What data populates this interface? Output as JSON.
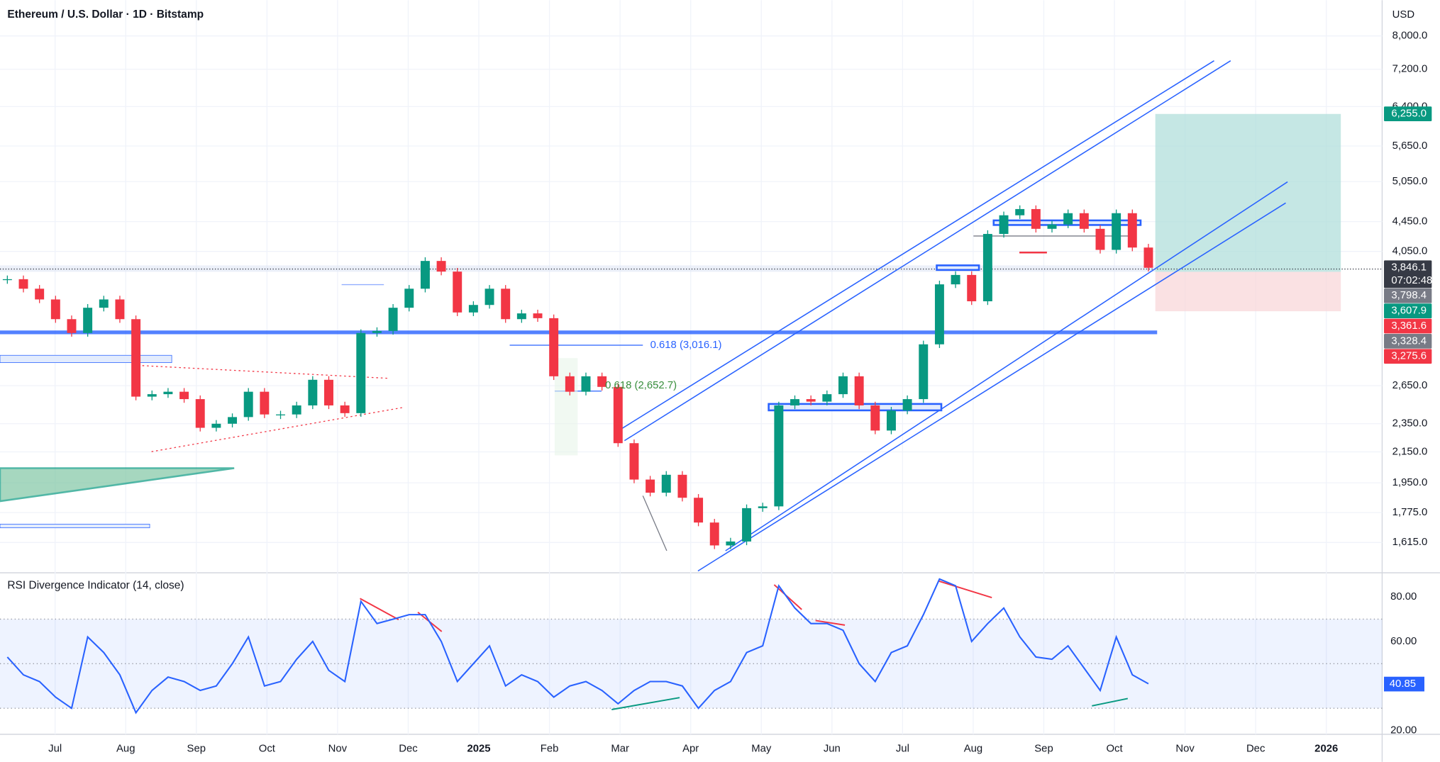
{
  "chart_data": [
    {
      "type": "candlestick",
      "title": "Ethereum / U.S. Dollar · 1D · Bitstamp",
      "currency": "USD",
      "x_labels": [
        "Jul",
        "Aug",
        "Sep",
        "Oct",
        "Nov",
        "Dec",
        "2025",
        "Feb",
        "Mar",
        "Apr",
        "May",
        "Jun",
        "Jul",
        "Aug",
        "Sep",
        "Oct",
        "Nov",
        "Dec",
        "2026"
      ],
      "closes": [
        3710,
        3600,
        3480,
        3270,
        3130,
        3390,
        3480,
        3270,
        2560,
        2580,
        2600,
        2540,
        2320,
        2350,
        2400,
        2600,
        2420,
        2420,
        2490,
        2700,
        2490,
        2430,
        3130,
        3150,
        3390,
        3600,
        3930,
        3800,
        3340,
        3420,
        3600,
        3270,
        3330,
        3280,
        2730,
        2600,
        2730,
        2640,
        2210,
        1970,
        1890,
        2000,
        1860,
        1720,
        1600,
        1620,
        1800,
        1810,
        2490,
        2540,
        2520,
        2580,
        2730,
        2490,
        2300,
        2450,
        2540,
        3020,
        3650,
        3760,
        3460,
        4280,
        4540,
        4630,
        4350,
        4410,
        4570,
        4350,
        4070,
        4570,
        4100,
        3846
      ],
      "up_color": "#089981",
      "down_color": "#f23645",
      "log_scale": true,
      "grid": true,
      "ylim": [
        1476,
        8752
      ],
      "yticks": [
        {
          "value": 8000,
          "label": "8,000.0"
        },
        {
          "value": 7200,
          "label": "7,200.0"
        },
        {
          "value": 6400,
          "label": "6,400.0"
        },
        {
          "value": 5650,
          "label": "5,650.0"
        },
        {
          "value": 5050,
          "label": "5,050.0"
        },
        {
          "value": 4450,
          "label": "4,450.0"
        },
        {
          "value": 4050,
          "label": "4,050.0"
        },
        {
          "value": 2650,
          "label": "2,650.0"
        },
        {
          "value": 2350,
          "label": "2,350.0"
        },
        {
          "value": 2150,
          "label": "2,150.0"
        },
        {
          "value": 1950,
          "label": "1,950.0"
        },
        {
          "value": 1775,
          "label": "1,775.0"
        },
        {
          "value": 1615,
          "label": "1,615.0"
        }
      ],
      "price_tags": [
        {
          "value": 6255.0,
          "label": "6,255.0",
          "color": "#089981"
        },
        {
          "value": 3846.1,
          "label": "3,846.1",
          "color": "#363a45",
          "countdown": "07:02:48"
        },
        {
          "value": 3798.4,
          "label": "3,798.4",
          "color": "#787b86"
        },
        {
          "value": 3607.9,
          "label": "3,607.9",
          "color": "#089981"
        },
        {
          "value": 3361.6,
          "label": "3,361.6",
          "color": "#f23645"
        },
        {
          "value": 3328.4,
          "label": "3,328.4",
          "color": "#787b86"
        },
        {
          "value": 3275.6,
          "label": "3,275.6",
          "color": "#f23645"
        }
      ],
      "annotations": [
        {
          "text": "0.618 (3,016.1)",
          "color": "#2962ff"
        },
        {
          "text": "0.618 (2,652.7)",
          "color": "#388e3c"
        }
      ]
    },
    {
      "type": "line",
      "title": "RSI Divergence Indicator (14, close)",
      "values": [
        53,
        45,
        42,
        35,
        30,
        62,
        55,
        45,
        28,
        38,
        44,
        42,
        38,
        40,
        50,
        62,
        40,
        42,
        52,
        60,
        47,
        42,
        78,
        68,
        70,
        72,
        72,
        60,
        42,
        50,
        58,
        40,
        45,
        42,
        35,
        40,
        42,
        38,
        32,
        38,
        42,
        42,
        40,
        30,
        38,
        42,
        55,
        58,
        85,
        75,
        68,
        68,
        65,
        50,
        42,
        55,
        58,
        72,
        88,
        85,
        60,
        68,
        75,
        62,
        53,
        52,
        58,
        48,
        38,
        62,
        45,
        41
      ],
      "color": "#2962ff",
      "ylim": [
        18.3,
        90.8
      ],
      "yticks": [
        {
          "value": 80,
          "label": "80.00"
        },
        {
          "value": 60,
          "label": "60.00"
        },
        {
          "value": 20,
          "label": "20.00"
        }
      ],
      "levels": [
        30,
        50,
        70
      ],
      "last_value": {
        "value": 40.85,
        "label": "40.85"
      }
    }
  ]
}
